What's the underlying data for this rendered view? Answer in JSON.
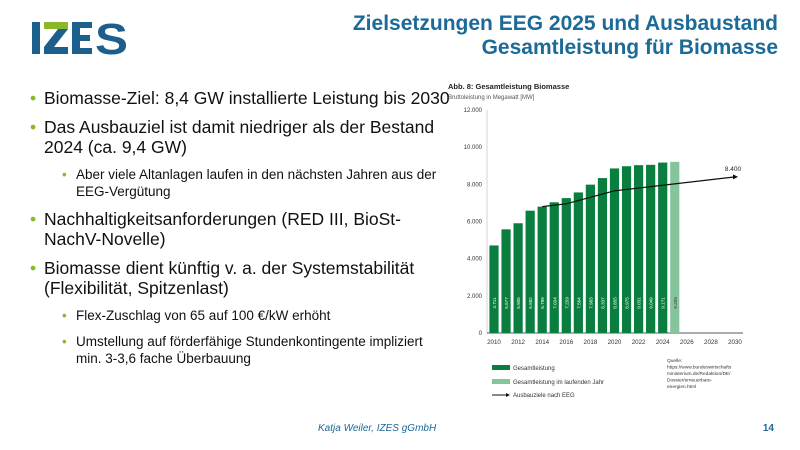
{
  "logo": {
    "text": "IZES",
    "colors": {
      "blue": "#1d5f8c",
      "green": "#8ab82a"
    }
  },
  "title": {
    "line1": "Zielsetzungen EEG 2025 und Ausbaustand",
    "line2": "Gesamtleistung für Biomasse"
  },
  "bullets": [
    {
      "level": 1,
      "text": "Biomasse-Ziel: 8,4 GW installierte Leistung bis 2030"
    },
    {
      "level": 1,
      "text": "Das Ausbauziel ist damit niedriger als der Bestand 2024 (ca. 9,4 GW)"
    },
    {
      "level": 2,
      "text": "Aber viele Altanlagen laufen in den nächsten Jahren aus der EEG-Vergütung"
    },
    {
      "level": 1,
      "text": "Nachhaltigkeitsanforderungen (RED III, BioSt-NachV-Novelle)"
    },
    {
      "level": 1,
      "text": "Biomasse dient künftig v. a. der Systemstabilität (Flexibilität, Spitzenlast)"
    },
    {
      "level": 2,
      "text": "Flex-Zuschlag von 65 auf 100 €/kW erhöht"
    },
    {
      "level": 2,
      "text": "Umstellung auf förderfähige Stundenkontingente impliziert min. 3-3,6 fache Überbauung"
    }
  ],
  "footer": {
    "author": "Katja Weiler, IZES gGmbH",
    "page": "14"
  },
  "chart_data": {
    "type": "bar",
    "title": "Abb. 8: Gesamtleistung Biomasse",
    "subtitle": "Bruttoleistung in Megawatt [MW]",
    "ylim": [
      0,
      12000
    ],
    "yticks": [
      "0",
      "2.000",
      "4.000",
      "6.000",
      "8.000",
      "10.000",
      "12.000"
    ],
    "ytick_values": [
      0,
      2000,
      4000,
      6000,
      8000,
      10000,
      12000
    ],
    "xlim": [
      2010,
      2030
    ],
    "xticks": [
      "2010",
      "2012",
      "2014",
      "2016",
      "2018",
      "2020",
      "2022",
      "2024",
      "2026",
      "2028",
      "2030"
    ],
    "bars": {
      "x": [
        2010,
        2011,
        2012,
        2013,
        2014,
        2015,
        2016,
        2017,
        2018,
        2019,
        2020,
        2021,
        2022,
        2023,
        2024,
        2025
      ],
      "values": [
        4711,
        5577,
        5905,
        6582,
        6799,
        7034,
        7259,
        7564,
        7983,
        8337,
        8855,
        8975,
        9031,
        9049,
        9171,
        9209
      ],
      "labels": [
        "4.711",
        "5.577",
        "5.905",
        "6.582",
        "6.799",
        "7.034",
        "7.259",
        "7.564",
        "7.983",
        "8.337",
        "8.855",
        "8.975",
        "9.031",
        "9.049",
        "9.171",
        "9.209"
      ]
    },
    "series": [
      {
        "name": "Gesamtleistung",
        "color": "#0a7e3e"
      },
      {
        "name": "Gesamtleistung im laufenden Jahr",
        "color": "#86c49b"
      },
      {
        "name": "Ausbauziele nach EEG",
        "color": "#111111",
        "x": [
          2014,
          2016,
          2018,
          2020,
          2022,
          2024,
          2030
        ],
        "values": [
          6800,
          6950,
          7300,
          7650,
          7800,
          7950,
          8400
        ]
      }
    ],
    "annotation": "8.400",
    "source": [
      "Quelle:",
      "https://www.bundeswirtschafts",
      "ministerium.de/Redaktion/DE/",
      "Dossier/erneuerbare-",
      "energien.html"
    ],
    "grid": false,
    "legend_placement": "bottom-left"
  }
}
